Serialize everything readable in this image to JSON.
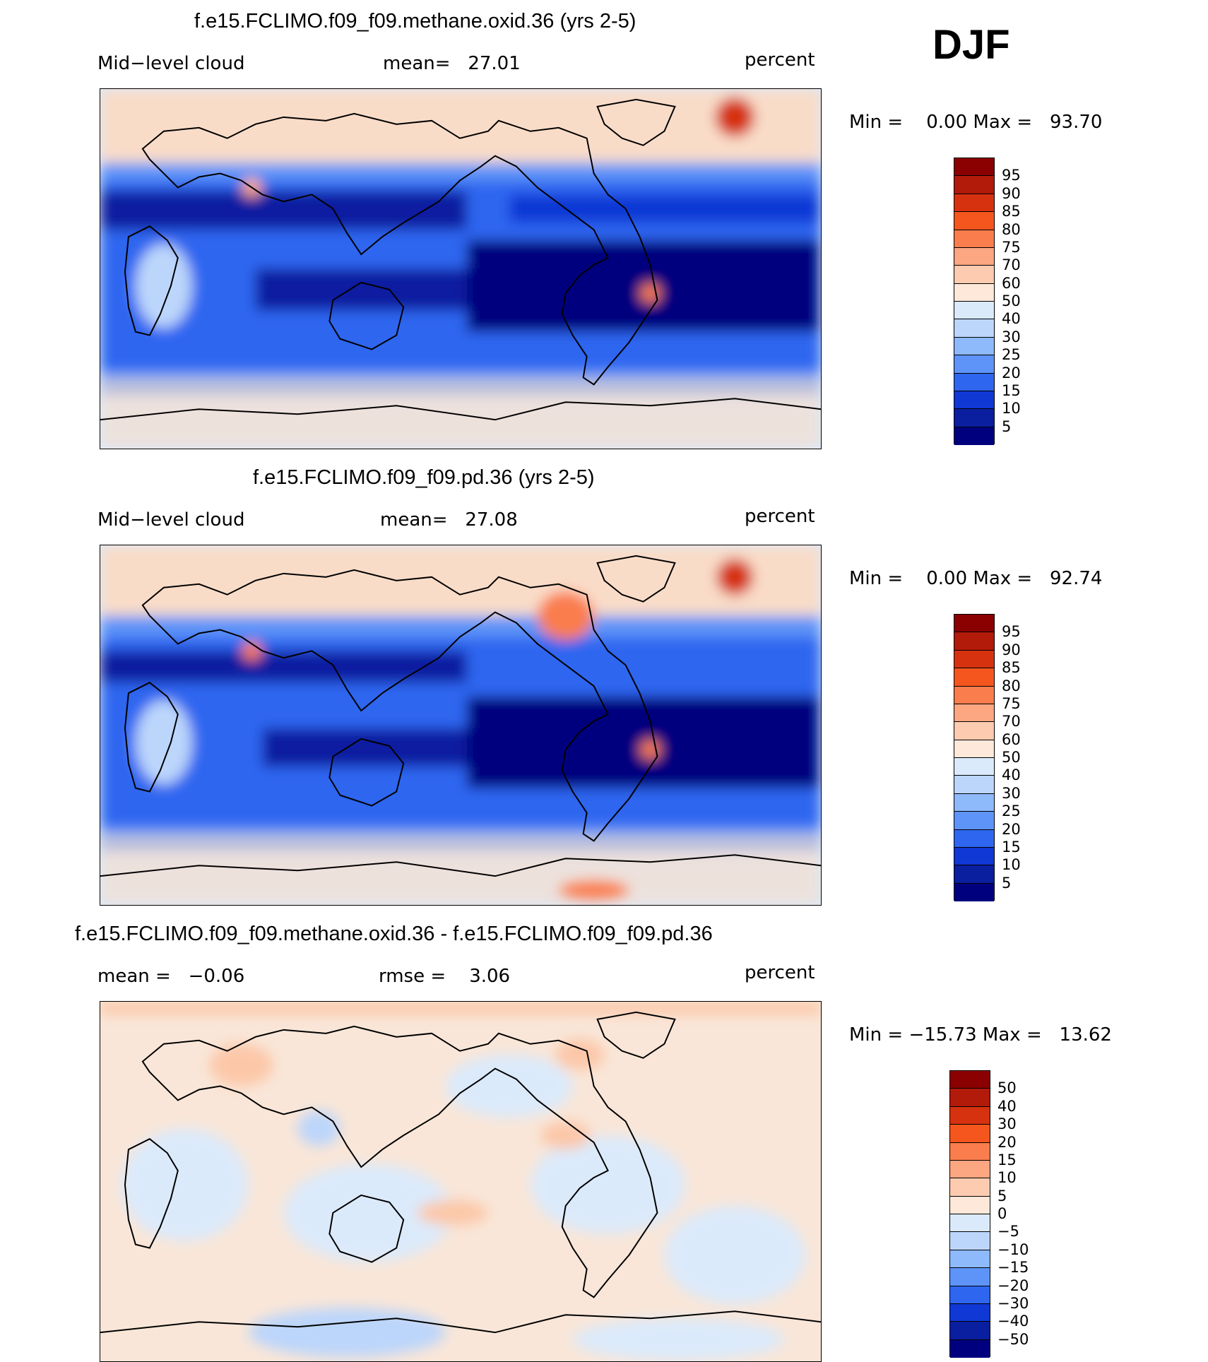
{
  "season": "DJF",
  "panels": [
    {
      "title": "f.e15.FCLIMO.f09_f09.methane.oxid.36 (yrs 2-5)",
      "left_text": "Mid−level cloud",
      "mid_text": "mean=   27.01",
      "units": "percent",
      "minmax": "Min =    0.00 Max =   93.70",
      "colorbar_labels": [
        "95",
        "90",
        "85",
        "80",
        "75",
        "70",
        "60",
        "50",
        "40",
        "30",
        "25",
        "20",
        "15",
        "10",
        "5"
      ],
      "colorbar_colors": [
        "#8b0000",
        "#b21a0a",
        "#d63210",
        "#f4561e",
        "#fa7d4d",
        "#fca682",
        "#fdcbb0",
        "#fde8d9",
        "#dbeafb",
        "#bcd6fb",
        "#8eb9fb",
        "#5e94f8",
        "#2e66f0",
        "#0f38d4",
        "#0a1ea0",
        "#00007e"
      ]
    },
    {
      "title": "f.e15.FCLIMO.f09_f09.pd.36 (yrs 2-5)",
      "left_text": "Mid−level cloud",
      "mid_text": "mean=   27.08",
      "units": "percent",
      "minmax": "Min =    0.00 Max =   92.74",
      "colorbar_labels": [
        "95",
        "90",
        "85",
        "80",
        "75",
        "70",
        "60",
        "50",
        "40",
        "30",
        "25",
        "20",
        "15",
        "10",
        "5"
      ],
      "colorbar_colors": [
        "#8b0000",
        "#b21a0a",
        "#d63210",
        "#f4561e",
        "#fa7d4d",
        "#fca682",
        "#fdcbb0",
        "#fde8d9",
        "#dbeafb",
        "#bcd6fb",
        "#8eb9fb",
        "#5e94f8",
        "#2e66f0",
        "#0f38d4",
        "#0a1ea0",
        "#00007e"
      ]
    },
    {
      "title": "f.e15.FCLIMO.f09_f09.methane.oxid.36 - f.e15.FCLIMO.f09_f09.pd.36",
      "left_text": "mean =   −0.06",
      "mid_text": "rmse =    3.06",
      "units": "percent",
      "minmax": "Min = −15.73 Max =   13.62",
      "colorbar_labels": [
        "50",
        "40",
        "30",
        "20",
        "15",
        "10",
        "5",
        "0",
        "−5",
        "−10",
        "−15",
        "−20",
        "−30",
        "−40",
        "−50"
      ],
      "colorbar_colors": [
        "#8b0000",
        "#b21a0a",
        "#d63210",
        "#f4561e",
        "#fa7d4d",
        "#fca682",
        "#fdcbb0",
        "#fde8d9",
        "#dbeafb",
        "#bcd6fb",
        "#8eb9fb",
        "#5e94f8",
        "#2e66f0",
        "#0f38d4",
        "#0a1ea0",
        "#00007e"
      ]
    }
  ]
}
